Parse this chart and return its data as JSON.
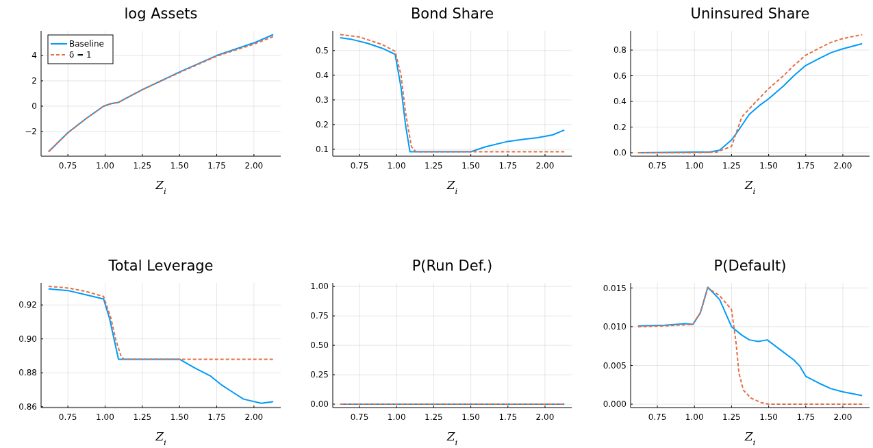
{
  "chart_data": [
    {
      "type": "line",
      "title": "log Assets",
      "xlabel": "Z$_{i}$",
      "xlim": [
        0.57,
        2.18
      ],
      "xticks": [
        {
          "value": 0.75,
          "label": "0.75"
        },
        {
          "value": 1,
          "label": "1.00"
        },
        {
          "value": 1.25,
          "label": "1.25"
        },
        {
          "value": 1.5,
          "label": "1.50"
        },
        {
          "value": 1.75,
          "label": "1.75"
        },
        {
          "value": 2,
          "label": "2.00"
        }
      ],
      "ylim": [
        -3.95,
        5.95
      ],
      "yticks": [
        {
          "value": -2,
          "label": "−2"
        },
        0,
        2,
        4
      ],
      "grid": true,
      "legend": "top left",
      "series": [
        {
          "name": "Baseline",
          "color": "#009af9",
          "line_style": "solid",
          "x": [
            0.62,
            0.75,
            0.87,
            0.99,
            1.04,
            1.09,
            1.25,
            1.5,
            1.75,
            2.0,
            2.13
          ],
          "values": [
            -3.6,
            -2.1,
            -1.0,
            0.0,
            0.2,
            0.3,
            1.3,
            2.7,
            4.0,
            5.0,
            5.65
          ]
        },
        {
          "name": "δ = 1",
          "color": "#e26f46",
          "line_style": "dashed",
          "x": [
            0.62,
            0.75,
            0.87,
            0.99,
            1.04,
            1.09,
            1.25,
            1.5,
            1.75,
            2.0,
            2.13
          ],
          "values": [
            -3.6,
            -2.1,
            -1.0,
            0.0,
            0.2,
            0.3,
            1.3,
            2.65,
            3.95,
            4.9,
            5.5
          ]
        }
      ]
    },
    {
      "type": "line",
      "title": "Bond Share",
      "xlabel": "Z$_{i}$",
      "xlim": [
        0.57,
        2.18
      ],
      "xticks": [
        {
          "value": 0.75,
          "label": "0.75"
        },
        {
          "value": 1,
          "label": "1.00"
        },
        {
          "value": 1.25,
          "label": "1.25"
        },
        {
          "value": 1.5,
          "label": "1.50"
        },
        {
          "value": 1.75,
          "label": "1.75"
        },
        {
          "value": 2,
          "label": "2.00"
        }
      ],
      "ylim": [
        0.072,
        0.58
      ],
      "yticks": [
        0.1,
        0.2,
        0.3,
        0.4,
        0.5
      ],
      "grid": true,
      "series": [
        {
          "color": "#009af9",
          "line_style": "solid",
          "x": [
            0.62,
            0.7,
            0.8,
            0.9,
            0.99,
            1.03,
            1.06,
            1.09,
            1.5,
            1.6,
            1.75,
            1.85,
            1.95,
            2.05,
            2.13
          ],
          "values": [
            0.552,
            0.545,
            0.53,
            0.51,
            0.485,
            0.35,
            0.2,
            0.09,
            0.09,
            0.11,
            0.132,
            0.14,
            0.147,
            0.158,
            0.178
          ]
        },
        {
          "color": "#e26f46",
          "line_style": "dashed",
          "x": [
            0.62,
            0.75,
            0.9,
            0.99,
            1.03,
            1.06,
            1.1,
            1.13,
            2.13
          ],
          "values": [
            0.565,
            0.555,
            0.525,
            0.497,
            0.4,
            0.25,
            0.11,
            0.09,
            0.09
          ]
        }
      ]
    },
    {
      "type": "line",
      "title": "Uninsured Share",
      "xlabel": "Z$_{i}$",
      "xlim": [
        0.57,
        2.18
      ],
      "xticks": [
        {
          "value": 0.75,
          "label": "0.75"
        },
        {
          "value": 1,
          "label": "1.00"
        },
        {
          "value": 1.25,
          "label": "1.25"
        },
        {
          "value": 1.5,
          "label": "1.50"
        },
        {
          "value": 1.75,
          "label": "1.75"
        },
        {
          "value": 2,
          "label": "2.00"
        }
      ],
      "ylim": [
        -0.027,
        0.95
      ],
      "yticks": [
        {
          "value": 0,
          "label": "0.0"
        },
        0.2,
        0.4,
        0.6,
        0.8
      ],
      "grid": true,
      "series": [
        {
          "color": "#009af9",
          "line_style": "solid",
          "x": [
            0.62,
            1.0,
            1.1,
            1.17,
            1.25,
            1.3,
            1.37,
            1.44,
            1.5,
            1.6,
            1.67,
            1.75,
            1.85,
            1.92,
            2.0,
            2.13
          ],
          "values": [
            0,
            0.005,
            0.005,
            0.02,
            0.1,
            0.18,
            0.3,
            0.37,
            0.42,
            0.52,
            0.6,
            0.68,
            0.74,
            0.78,
            0.81,
            0.85
          ]
        },
        {
          "color": "#e26f46",
          "line_style": "dashed",
          "x": [
            0.62,
            1.0,
            1.15,
            1.25,
            1.28,
            1.32,
            1.4,
            1.5,
            1.6,
            1.67,
            1.75,
            1.85,
            1.92,
            2.0,
            2.13
          ],
          "values": [
            0,
            0,
            0.005,
            0.05,
            0.15,
            0.28,
            0.38,
            0.5,
            0.6,
            0.68,
            0.76,
            0.82,
            0.86,
            0.89,
            0.92
          ]
        }
      ]
    },
    {
      "type": "line",
      "title": "Total Leverage",
      "xlabel": "Z$_{i}$",
      "xlim": [
        0.57,
        2.18
      ],
      "xticks": [
        {
          "value": 0.75,
          "label": "0.75"
        },
        {
          "value": 1,
          "label": "1.00"
        },
        {
          "value": 1.25,
          "label": "1.25"
        },
        {
          "value": 1.5,
          "label": "1.50"
        },
        {
          "value": 1.75,
          "label": "1.75"
        },
        {
          "value": 2,
          "label": "2.00"
        }
      ],
      "ylim": [
        0.8595,
        0.933
      ],
      "yticks": [
        0.86,
        0.88,
        {
          "value": 0.9,
          "label": "0.90"
        },
        0.92
      ],
      "grid": true,
      "series": [
        {
          "color": "#009af9",
          "line_style": "solid",
          "x": [
            0.62,
            0.75,
            0.87,
            0.99,
            1.03,
            1.06,
            1.09,
            1.5,
            1.6,
            1.71,
            1.78,
            1.85,
            1.93,
            2.05,
            2.13
          ],
          "values": [
            0.9295,
            0.9285,
            0.926,
            0.9235,
            0.912,
            0.9,
            0.888,
            0.888,
            0.883,
            0.878,
            0.873,
            0.869,
            0.8645,
            0.862,
            0.863
          ]
        },
        {
          "color": "#e26f46",
          "line_style": "dashed",
          "x": [
            0.62,
            0.75,
            0.87,
            0.99,
            1.04,
            1.07,
            1.11,
            1.13,
            2.13
          ],
          "values": [
            0.931,
            0.93,
            0.928,
            0.925,
            0.912,
            0.9,
            0.889,
            0.888,
            0.888
          ]
        }
      ]
    },
    {
      "type": "line",
      "title": "P(Run Def.)",
      "xlabel": "Z$_{i}$",
      "xlim": [
        0.57,
        2.18
      ],
      "xticks": [
        {
          "value": 0.75,
          "label": "0.75"
        },
        {
          "value": 1,
          "label": "1.00"
        },
        {
          "value": 1.25,
          "label": "1.25"
        },
        {
          "value": 1.5,
          "label": "1.50"
        },
        {
          "value": 1.75,
          "label": "1.75"
        },
        {
          "value": 2,
          "label": "2.00"
        }
      ],
      "ylim": [
        -0.029,
        1.03
      ],
      "yticks": [
        {
          "value": 0,
          "label": "0.00"
        },
        {
          "value": 0.25,
          "label": "0.25"
        },
        {
          "value": 0.5,
          "label": "0.50"
        },
        {
          "value": 0.75,
          "label": "0.75"
        },
        {
          "value": 1,
          "label": "1.00"
        }
      ],
      "grid": true,
      "series": [
        {
          "color": "#009af9",
          "line_style": "solid",
          "x": [
            0.62,
            2.13
          ],
          "values": [
            0,
            0
          ]
        },
        {
          "color": "#e26f46",
          "line_style": "dashed",
          "x": [
            0.62,
            2.13
          ],
          "values": [
            0,
            0
          ]
        }
      ]
    },
    {
      "type": "line",
      "title": "P(Default)",
      "xlabel": "Z$_{i}$",
      "xlim": [
        0.57,
        2.18
      ],
      "xticks": [
        {
          "value": 0.75,
          "label": "0.75"
        },
        {
          "value": 1,
          "label": "1.00"
        },
        {
          "value": 1.25,
          "label": "1.25"
        },
        {
          "value": 1.5,
          "label": "1.50"
        },
        {
          "value": 1.75,
          "label": "1.75"
        },
        {
          "value": 2,
          "label": "2.00"
        }
      ],
      "ylim": [
        -0.00044,
        0.01565
      ],
      "yticks": [
        {
          "value": 0,
          "label": "0.000"
        },
        {
          "value": 0.005,
          "label": "0.005"
        },
        {
          "value": 0.01,
          "label": "0.010"
        },
        {
          "value": 0.015,
          "label": "0.015"
        }
      ],
      "grid": true,
      "series": [
        {
          "color": "#009af9",
          "line_style": "solid",
          "x": [
            0.62,
            0.8,
            0.94,
            0.99,
            1.04,
            1.09,
            1.17,
            1.25,
            1.32,
            1.37,
            1.43,
            1.49,
            1.58,
            1.67,
            1.71,
            1.75,
            1.84,
            1.92,
            2.0,
            2.13
          ],
          "values": [
            0.0101,
            0.0102,
            0.0104,
            0.0103,
            0.0118,
            0.0151,
            0.0135,
            0.01,
            0.0089,
            0.0083,
            0.0081,
            0.0083,
            0.007,
            0.0057,
            0.0049,
            0.0036,
            0.0027,
            0.002,
            0.0016,
            0.0011
          ]
        },
        {
          "color": "#e26f46",
          "line_style": "dashed",
          "x": [
            0.62,
            0.8,
            0.99,
            1.04,
            1.09,
            1.17,
            1.25,
            1.28,
            1.3,
            1.33,
            1.38,
            1.45,
            1.5,
            2.13
          ],
          "values": [
            0.01,
            0.0101,
            0.0103,
            0.0118,
            0.015,
            0.014,
            0.0122,
            0.008,
            0.004,
            0.0018,
            0.0008,
            0.0002,
            0,
            0
          ]
        }
      ]
    }
  ]
}
